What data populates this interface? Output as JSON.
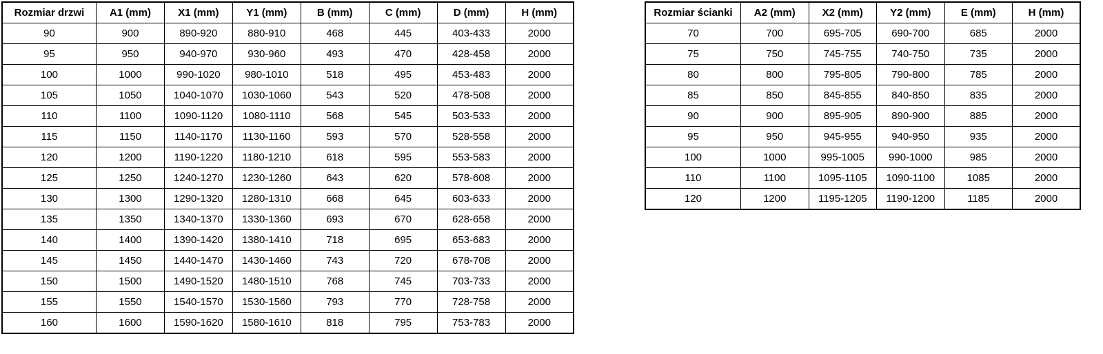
{
  "colors": {
    "border": "#000000",
    "background": "#ffffff",
    "text": "#000000"
  },
  "door_table": {
    "headers": [
      "Rozmiar drzwi",
      "A1 (mm)",
      "X1 (mm)",
      "Y1 (mm)",
      "B (mm)",
      "C (mm)",
      "D (mm)",
      "H (mm)"
    ],
    "rows": [
      [
        "90",
        "900",
        "890-920",
        "880-910",
        "468",
        "445",
        "403-433",
        "2000"
      ],
      [
        "95",
        "950",
        "940-970",
        "930-960",
        "493",
        "470",
        "428-458",
        "2000"
      ],
      [
        "100",
        "1000",
        "990-1020",
        "980-1010",
        "518",
        "495",
        "453-483",
        "2000"
      ],
      [
        "105",
        "1050",
        "1040-1070",
        "1030-1060",
        "543",
        "520",
        "478-508",
        "2000"
      ],
      [
        "110",
        "1100",
        "1090-1120",
        "1080-1110",
        "568",
        "545",
        "503-533",
        "2000"
      ],
      [
        "115",
        "1150",
        "1140-1170",
        "1130-1160",
        "593",
        "570",
        "528-558",
        "2000"
      ],
      [
        "120",
        "1200",
        "1190-1220",
        "1180-1210",
        "618",
        "595",
        "553-583",
        "2000"
      ],
      [
        "125",
        "1250",
        "1240-1270",
        "1230-1260",
        "643",
        "620",
        "578-608",
        "2000"
      ],
      [
        "130",
        "1300",
        "1290-1320",
        "1280-1310",
        "668",
        "645",
        "603-633",
        "2000"
      ],
      [
        "135",
        "1350",
        "1340-1370",
        "1330-1360",
        "693",
        "670",
        "628-658",
        "2000"
      ],
      [
        "140",
        "1400",
        "1390-1420",
        "1380-1410",
        "718",
        "695",
        "653-683",
        "2000"
      ],
      [
        "145",
        "1450",
        "1440-1470",
        "1430-1460",
        "743",
        "720",
        "678-708",
        "2000"
      ],
      [
        "150",
        "1500",
        "1490-1520",
        "1480-1510",
        "768",
        "745",
        "703-733",
        "2000"
      ],
      [
        "155",
        "1550",
        "1540-1570",
        "1530-1560",
        "793",
        "770",
        "728-758",
        "2000"
      ],
      [
        "160",
        "1600",
        "1590-1620",
        "1580-1610",
        "818",
        "795",
        "753-783",
        "2000"
      ]
    ]
  },
  "wall_table": {
    "headers": [
      "Rozmiar ścianki",
      "A2 (mm)",
      "X2 (mm)",
      "Y2 (mm)",
      "E (mm)",
      "H (mm)"
    ],
    "rows": [
      [
        "70",
        "700",
        "695-705",
        "690-700",
        "685",
        "2000"
      ],
      [
        "75",
        "750",
        "745-755",
        "740-750",
        "735",
        "2000"
      ],
      [
        "80",
        "800",
        "795-805",
        "790-800",
        "785",
        "2000"
      ],
      [
        "85",
        "850",
        "845-855",
        "840-850",
        "835",
        "2000"
      ],
      [
        "90",
        "900",
        "895-905",
        "890-900",
        "885",
        "2000"
      ],
      [
        "95",
        "950",
        "945-955",
        "940-950",
        "935",
        "2000"
      ],
      [
        "100",
        "1000",
        "995-1005",
        "990-1000",
        "985",
        "2000"
      ],
      [
        "110",
        "1100",
        "1095-1105",
        "1090-1100",
        "1085",
        "2000"
      ],
      [
        "120",
        "1200",
        "1195-1205",
        "1190-1200",
        "1185",
        "2000"
      ]
    ]
  }
}
